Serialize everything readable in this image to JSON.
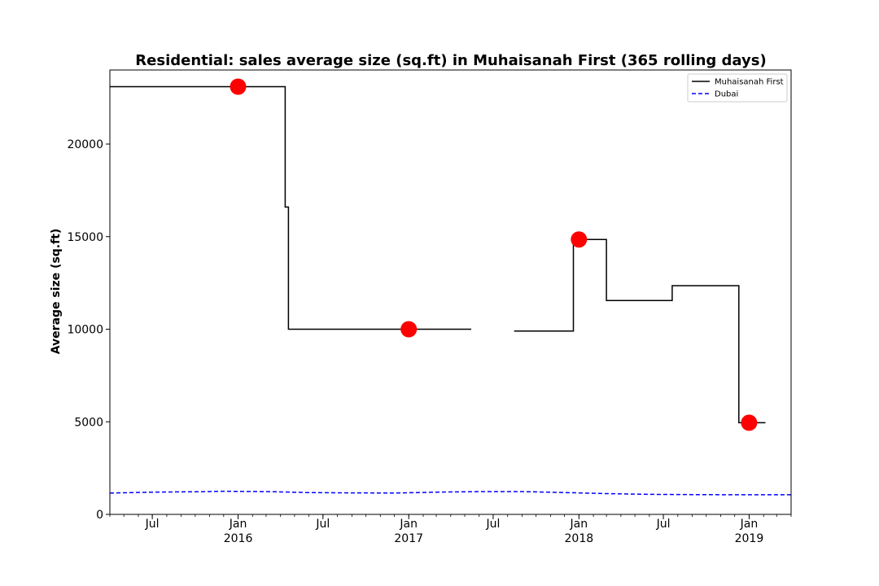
{
  "chart_data": {
    "type": "line",
    "title": "Residential: sales average size (sq.ft) in Muhaisanah First (365 rolling days)",
    "xlabel": "",
    "ylabel": "Average size (sq.ft)",
    "xlim": [
      "2015-04-01",
      "2019-04-01"
    ],
    "ylim": [
      0,
      24000
    ],
    "yticks": [
      0,
      5000,
      10000,
      15000,
      20000
    ],
    "xticks": [
      {
        "date": "2015-07-01",
        "label": "Jul",
        "year": ""
      },
      {
        "date": "2016-01-01",
        "label": "Jan",
        "year": "2016"
      },
      {
        "date": "2016-07-01",
        "label": "Jul",
        "year": ""
      },
      {
        "date": "2017-01-01",
        "label": "Jan",
        "year": "2017"
      },
      {
        "date": "2017-07-01",
        "label": "Jul",
        "year": ""
      },
      {
        "date": "2018-01-01",
        "label": "Jan",
        "year": "2018"
      },
      {
        "date": "2018-07-01",
        "label": "Jul",
        "year": ""
      },
      {
        "date": "2019-01-01",
        "label": "Jan",
        "year": "2019"
      }
    ],
    "grid": false,
    "legend": {
      "position": "top-right"
    },
    "series": [
      {
        "name": "Muhaisanah First",
        "color": "#000000",
        "style": "solid",
        "segments": [
          [
            [
              "2015-04-01",
              23100
            ],
            [
              "2016-04-11",
              23100
            ],
            [
              "2016-04-11",
              16600
            ],
            [
              "2016-04-18",
              16600
            ],
            [
              "2016-04-18",
              10000
            ],
            [
              "2017-05-15",
              10000
            ]
          ],
          [
            [
              "2017-08-15",
              9900
            ],
            [
              "2017-12-20",
              9900
            ],
            [
              "2017-12-20",
              14850
            ],
            [
              "2018-03-01",
              14850
            ],
            [
              "2018-03-01",
              11550
            ],
            [
              "2018-07-20",
              11550
            ],
            [
              "2018-07-20",
              12350
            ],
            [
              "2018-12-10",
              12350
            ],
            [
              "2018-12-10",
              4950
            ],
            [
              "2019-02-05",
              4950
            ]
          ]
        ]
      },
      {
        "name": "Dubai",
        "color": "#0000ff",
        "style": "dashed",
        "points": [
          [
            "2015-04-01",
            1150
          ],
          [
            "2015-07-01",
            1200
          ],
          [
            "2015-10-01",
            1220
          ],
          [
            "2015-12-01",
            1250
          ],
          [
            "2016-03-01",
            1230
          ],
          [
            "2016-06-01",
            1180
          ],
          [
            "2016-09-01",
            1160
          ],
          [
            "2016-12-01",
            1150
          ],
          [
            "2017-03-01",
            1200
          ],
          [
            "2017-06-01",
            1230
          ],
          [
            "2017-09-01",
            1230
          ],
          [
            "2017-12-01",
            1180
          ],
          [
            "2018-03-01",
            1120
          ],
          [
            "2018-06-01",
            1080
          ],
          [
            "2018-09-01",
            1070
          ],
          [
            "2018-12-01",
            1060
          ],
          [
            "2019-04-01",
            1060
          ]
        ]
      }
    ],
    "markers": {
      "color": "#ff0000",
      "points": [
        [
          "2016-01-01",
          23100
        ],
        [
          "2017-01-01",
          10000
        ],
        [
          "2018-01-01",
          14850
        ],
        [
          "2019-01-01",
          4950
        ]
      ]
    }
  }
}
